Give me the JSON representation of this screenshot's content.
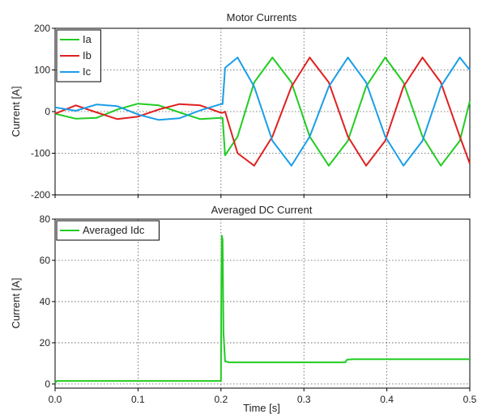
{
  "chart_data": [
    {
      "type": "line",
      "title": "Motor Currents",
      "xlabel": "",
      "ylabel": "Current [A]",
      "xlim": [
        0.0,
        0.5
      ],
      "ylim": [
        -200,
        200
      ],
      "yticks": [
        -200,
        -100,
        0,
        100,
        200
      ],
      "xticks": [
        0.0,
        0.1,
        0.2,
        0.3,
        0.4,
        0.5
      ],
      "show_x_tick_labels": false,
      "grid": true,
      "legend_position": "top-left",
      "series": [
        {
          "name": "Ia",
          "color": "#22cc22",
          "x": [
            0.0,
            0.025,
            0.05,
            0.075,
            0.1,
            0.125,
            0.15,
            0.175,
            0.2,
            0.202,
            0.205,
            0.22,
            0.24,
            0.262,
            0.285,
            0.307,
            0.33,
            0.353,
            0.375,
            0.398,
            0.42,
            0.443,
            0.465,
            0.488,
            0.5
          ],
          "y": [
            -5,
            -17,
            -15,
            5,
            19,
            15,
            -2,
            -18,
            -15,
            -15,
            -105,
            -60,
            70,
            130,
            70,
            -60,
            -130,
            -70,
            60,
            130,
            70,
            -60,
            -130,
            -70,
            25
          ]
        },
        {
          "name": "Ib",
          "color": "#e02020",
          "x": [
            0.0,
            0.025,
            0.05,
            0.075,
            0.1,
            0.125,
            0.15,
            0.175,
            0.2,
            0.202,
            0.205,
            0.22,
            0.24,
            0.262,
            0.285,
            0.307,
            0.33,
            0.353,
            0.375,
            0.398,
            0.42,
            0.443,
            0.465,
            0.488,
            0.5
          ],
          "y": [
            -5,
            15,
            -2,
            -18,
            -12,
            5,
            18,
            15,
            -3,
            -3,
            0,
            -100,
            -130,
            -60,
            60,
            130,
            70,
            -60,
            -130,
            -70,
            60,
            130,
            70,
            -60,
            -125
          ]
        },
        {
          "name": "Ic",
          "color": "#1a9ee8",
          "x": [
            0.0,
            0.025,
            0.05,
            0.075,
            0.1,
            0.125,
            0.15,
            0.175,
            0.2,
            0.202,
            0.205,
            0.22,
            0.24,
            0.262,
            0.285,
            0.307,
            0.33,
            0.353,
            0.375,
            0.398,
            0.42,
            0.443,
            0.465,
            0.488,
            0.5
          ],
          "y": [
            10,
            2,
            17,
            13,
            -7,
            -20,
            -16,
            3,
            18,
            18,
            105,
            130,
            60,
            -70,
            -130,
            -60,
            60,
            130,
            70,
            -60,
            -130,
            -70,
            60,
            130,
            100
          ]
        }
      ]
    },
    {
      "type": "line",
      "title": "Averaged DC Current",
      "xlabel": "Time [s]",
      "ylabel": "Current [A]",
      "xlim": [
        0.0,
        0.5
      ],
      "ylim": [
        -2,
        80
      ],
      "yticks": [
        0,
        20,
        40,
        60,
        80
      ],
      "xticks": [
        0.0,
        0.1,
        0.2,
        0.3,
        0.4,
        0.5
      ],
      "show_x_tick_labels": true,
      "grid": true,
      "legend_position": "top-left",
      "series": [
        {
          "name": "Averaged Idc",
          "color": "#22cc22",
          "x": [
            0.0,
            0.002,
            0.2,
            0.2005,
            0.201,
            0.202,
            0.203,
            0.205,
            0.21,
            0.35,
            0.352,
            0.36,
            0.5
          ],
          "y": [
            0.5,
            1.5,
            1.5,
            50,
            72,
            70,
            25,
            11,
            10.5,
            10.5,
            11.8,
            12,
            12
          ]
        }
      ]
    }
  ]
}
